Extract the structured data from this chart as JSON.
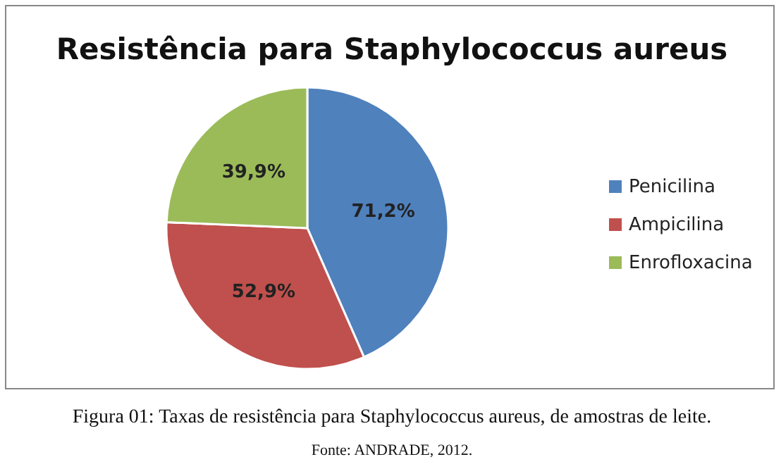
{
  "chart_data": {
    "type": "pie",
    "title": "Resistência para Staphylococcus aureus",
    "categories": [
      "Penicilina",
      "Ampicilina",
      "Enrofloxacina"
    ],
    "values": [
      71.2,
      52.9,
      39.9
    ],
    "colors": [
      "#4f81bd",
      "#c0504d",
      "#9bbb59"
    ],
    "value_labels": [
      "71,2%",
      "52,9%",
      "39,9%"
    ],
    "legend": "right",
    "annotations": [
      "Figura 01: Taxas de resistência para Staphylococcus aureus, de amostras de leite.",
      "Fonte: ANDRADE, 2012."
    ]
  }
}
